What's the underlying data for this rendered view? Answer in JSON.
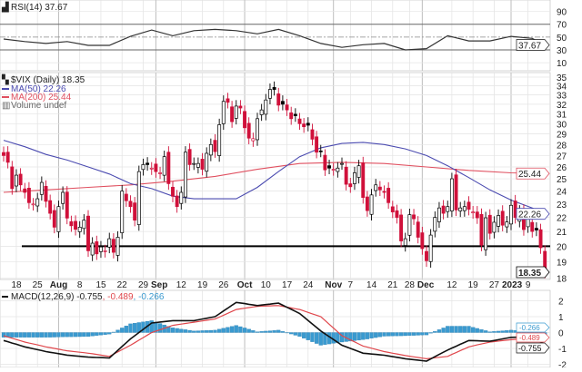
{
  "rsi": {
    "legend": "RSI(14) 37.67",
    "value_tag": "37.67",
    "axis_ticks": [
      90,
      70,
      50,
      30,
      10
    ],
    "points": [
      [
        "2022-07-13",
        47
      ],
      [
        "2022-07-20",
        43
      ],
      [
        "2022-07-27",
        40
      ],
      [
        "2022-08-03",
        43
      ],
      [
        "2022-08-10",
        37
      ],
      [
        "2022-08-17",
        37
      ],
      [
        "2022-08-24",
        51
      ],
      [
        "2022-08-31",
        61
      ],
      [
        "2022-09-08",
        52
      ],
      [
        "2022-09-15",
        60
      ],
      [
        "2022-09-22",
        62
      ],
      [
        "2022-09-29",
        60
      ],
      [
        "2022-10-06",
        55
      ],
      [
        "2022-10-13",
        62
      ],
      [
        "2022-10-20",
        52
      ],
      [
        "2022-10-27",
        40
      ],
      [
        "2022-11-03",
        34
      ],
      [
        "2022-11-10",
        38
      ],
      [
        "2022-11-17",
        40
      ],
      [
        "2022-11-25",
        30
      ],
      [
        "2022-12-02",
        32
      ],
      [
        "2022-12-09",
        52
      ],
      [
        "2022-12-16",
        44
      ],
      [
        "2022-12-23",
        44
      ],
      [
        "2023-01-03",
        51
      ],
      [
        "2023-01-10",
        48
      ],
      [
        "2023-01-13",
        37.67
      ]
    ]
  },
  "price": {
    "legend_title": "$VIX (Daily) 18.35",
    "ma50_label": "MA(50) 22.26",
    "ma200_label": "MA(200) 25.44",
    "volume_label": "Volume undef",
    "last_tag": "18.35",
    "ma50_tag": "22.26",
    "ma200_tag": "25.44",
    "scale": "log",
    "axis_ticks": [
      35,
      34,
      33,
      32,
      31,
      30,
      29,
      28,
      27,
      26,
      25,
      24,
      23,
      22,
      21,
      20,
      19,
      18
    ],
    "support_level": 20,
    "colors": {
      "up": "#000000",
      "down": "#d0103a",
      "ma50": "#4b4bb0",
      "ma200": "#e05060"
    },
    "dates": [
      "2022-07-13",
      "2022-07-14",
      "2022-07-15",
      "2022-07-18",
      "2022-07-19",
      "2022-07-20",
      "2022-07-21",
      "2022-07-22",
      "2022-07-25",
      "2022-07-26",
      "2022-07-27",
      "2022-07-28",
      "2022-07-29",
      "2022-08-01",
      "2022-08-02",
      "2022-08-03",
      "2022-08-04",
      "2022-08-05",
      "2022-08-08",
      "2022-08-09",
      "2022-08-10",
      "2022-08-11",
      "2022-08-12",
      "2022-08-15",
      "2022-08-16",
      "2022-08-17",
      "2022-08-18",
      "2022-08-19",
      "2022-08-22",
      "2022-08-23",
      "2022-08-24",
      "2022-08-25",
      "2022-08-26",
      "2022-08-29",
      "2022-08-30",
      "2022-08-31",
      "2022-09-01",
      "2022-09-02",
      "2022-09-06",
      "2022-09-07",
      "2022-09-08",
      "2022-09-09",
      "2022-09-12",
      "2022-09-13",
      "2022-09-14",
      "2022-09-15",
      "2022-09-16",
      "2022-09-19",
      "2022-09-20",
      "2022-09-21",
      "2022-09-22",
      "2022-09-23",
      "2022-09-26",
      "2022-09-27",
      "2022-09-28",
      "2022-09-29",
      "2022-09-30",
      "2022-10-03",
      "2022-10-04",
      "2022-10-05",
      "2022-10-06",
      "2022-10-07",
      "2022-10-10",
      "2022-10-11",
      "2022-10-12",
      "2022-10-13",
      "2022-10-14",
      "2022-10-17",
      "2022-10-18",
      "2022-10-19",
      "2022-10-20",
      "2022-10-21",
      "2022-10-24",
      "2022-10-25",
      "2022-10-26",
      "2022-10-27",
      "2022-10-28",
      "2022-10-31",
      "2022-11-01",
      "2022-11-02",
      "2022-11-03",
      "2022-11-04",
      "2022-11-07",
      "2022-11-08",
      "2022-11-09",
      "2022-11-10",
      "2022-11-11",
      "2022-11-14",
      "2022-11-15",
      "2022-11-16",
      "2022-11-17",
      "2022-11-18",
      "2022-11-21",
      "2022-11-22",
      "2022-11-23",
      "2022-11-25",
      "2022-11-28",
      "2022-11-29",
      "2022-11-30",
      "2022-12-01",
      "2022-12-02",
      "2022-12-05",
      "2022-12-06",
      "2022-12-07",
      "2022-12-08",
      "2022-12-09",
      "2022-12-12",
      "2022-12-13",
      "2022-12-14",
      "2022-12-15",
      "2022-12-16",
      "2022-12-19",
      "2022-12-20",
      "2022-12-21",
      "2022-12-22",
      "2022-12-23",
      "2022-12-27",
      "2022-12-28",
      "2022-12-29",
      "2022-12-30",
      "2023-01-03",
      "2023-01-04",
      "2023-01-05",
      "2023-01-06",
      "2023-01-09",
      "2023-01-10",
      "2023-01-11",
      "2023-01-12",
      "2023-01-13"
    ],
    "close": [
      27.0,
      26.4,
      24.2,
      25.3,
      24.5,
      23.9,
      23.1,
      23.0,
      23.4,
      24.7,
      23.2,
      22.3,
      21.3,
      22.8,
      23.9,
      21.95,
      21.4,
      21.15,
      21.3,
      21.8,
      19.7,
      20.2,
      19.5,
      19.95,
      19.7,
      20.5,
      19.6,
      20.6,
      24.0,
      23.25,
      22.8,
      21.8,
      25.6,
      26.2,
      26.2,
      25.9,
      25.6,
      25.5,
      26.9,
      24.6,
      23.6,
      22.8,
      23.9,
      27.3,
      26.2,
      26.3,
      26.3,
      25.8,
      27.2,
      28.0,
      27.35,
      29.9,
      32.3,
      32.2,
      30.2,
      31.8,
      31.6,
      29.6,
      28.6,
      28.55,
      30.5,
      31.4,
      32.45,
      33.6,
      33.6,
      31.9,
      32.0,
      31.4,
      30.5,
      30.8,
      30.0,
      29.7,
      29.85,
      28.5,
      27.3,
      27.4,
      25.75,
      25.9,
      25.8,
      25.9,
      26.3,
      24.55,
      24.35,
      25.5,
      26.1,
      23.5,
      22.5,
      23.7,
      24.5,
      24.1,
      23.9,
      23.1,
      22.4,
      22.0,
      20.35,
      20.5,
      22.2,
      21.9,
      20.6,
      19.84,
      19.06,
      20.75,
      22.0,
      22.7,
      22.3,
      22.8,
      25.0,
      22.55,
      22.7,
      22.8,
      22.6,
      22.4,
      21.97,
      20.07,
      21.97,
      20.87,
      21.65,
      22.14,
      21.44,
      21.67,
      22.9,
      22.0,
      22.46,
      21.13,
      21.97,
      21.0,
      21.1,
      19.9,
      18.35
    ],
    "ma50": [
      [
        "2022-07-13",
        28.4
      ],
      [
        "2022-07-20",
        27.8
      ],
      [
        "2022-07-27",
        27.1
      ],
      [
        "2022-08-03",
        26.6
      ],
      [
        "2022-08-10",
        26.0
      ],
      [
        "2022-08-17",
        25.4
      ],
      [
        "2022-08-24",
        24.6
      ],
      [
        "2022-08-31",
        24.2
      ],
      [
        "2022-09-08",
        23.6
      ],
      [
        "2022-09-15",
        23.4
      ],
      [
        "2022-09-22",
        23.4
      ],
      [
        "2022-09-29",
        23.4
      ],
      [
        "2022-10-06",
        24.3
      ],
      [
        "2022-10-13",
        25.6
      ],
      [
        "2022-10-20",
        26.9
      ],
      [
        "2022-10-27",
        27.7
      ],
      [
        "2022-11-03",
        28.1
      ],
      [
        "2022-11-10",
        28.2
      ],
      [
        "2022-11-17",
        28.0
      ],
      [
        "2022-11-25",
        27.6
      ],
      [
        "2022-12-02",
        27.0
      ],
      [
        "2022-12-09",
        26.1
      ],
      [
        "2022-12-16",
        25.1
      ],
      [
        "2022-12-23",
        24.1
      ],
      [
        "2023-01-03",
        23.3
      ],
      [
        "2023-01-10",
        22.7
      ],
      [
        "2023-01-13",
        22.26
      ]
    ],
    "ma200": [
      [
        "2022-07-13",
        23.9
      ],
      [
        "2022-07-27",
        24.1
      ],
      [
        "2022-08-10",
        24.3
      ],
      [
        "2022-08-24",
        24.5
      ],
      [
        "2022-09-08",
        24.8
      ],
      [
        "2022-09-22",
        25.2
      ],
      [
        "2022-10-06",
        25.8
      ],
      [
        "2022-10-20",
        26.3
      ],
      [
        "2022-11-03",
        26.4
      ],
      [
        "2022-11-17",
        26.3
      ],
      [
        "2022-12-02",
        26.0
      ],
      [
        "2022-12-16",
        25.7
      ],
      [
        "2023-01-03",
        25.5
      ],
      [
        "2023-01-13",
        25.44
      ]
    ]
  },
  "date_axis": [
    {
      "date": "2022-07-18",
      "label": "18"
    },
    {
      "date": "2022-07-25",
      "label": "25"
    },
    {
      "date": "2022-08-01",
      "label": "Aug",
      "month": true
    },
    {
      "date": "2022-08-08",
      "label": "8"
    },
    {
      "date": "2022-08-15",
      "label": "15"
    },
    {
      "date": "2022-08-22",
      "label": "22"
    },
    {
      "date": "2022-08-29",
      "label": "29"
    },
    {
      "date": "2022-09-01",
      "label": "Sep",
      "month": true
    },
    {
      "date": "2022-09-12",
      "label": "12"
    },
    {
      "date": "2022-09-19",
      "label": "19"
    },
    {
      "date": "2022-09-26",
      "label": "26"
    },
    {
      "date": "2022-10-03",
      "label": "Oct",
      "month": true
    },
    {
      "date": "2022-10-10",
      "label": "10"
    },
    {
      "date": "2022-10-17",
      "label": "17"
    },
    {
      "date": "2022-10-24",
      "label": "24"
    },
    {
      "date": "2022-11-01",
      "label": "Nov",
      "month": true
    },
    {
      "date": "2022-11-07",
      "label": "7"
    },
    {
      "date": "2022-11-14",
      "label": "14"
    },
    {
      "date": "2022-11-21",
      "label": "21"
    },
    {
      "date": "2022-11-28",
      "label": "28"
    },
    {
      "date": "2022-12-01",
      "label": "Dec",
      "month": true
    },
    {
      "date": "2022-12-12",
      "label": "12"
    },
    {
      "date": "2022-12-19",
      "label": "19"
    },
    {
      "date": "2022-12-27",
      "label": "27"
    },
    {
      "date": "2023-01-03",
      "label": "2023",
      "month": true
    },
    {
      "date": "2023-01-09",
      "label": "9"
    }
  ],
  "macd": {
    "legend_main": "MACD(12,26,9) -0.755",
    "legend_signal": ", -0.489",
    "legend_hist": ", -0.266",
    "tags": [
      "-0.266",
      "-0.489",
      "-0.755"
    ],
    "axis_ticks": [
      2,
      1,
      0,
      -1,
      -2
    ],
    "colors": {
      "macd": "#111111",
      "signal": "#e0474c",
      "histogram": "#3a9ad0"
    },
    "points": [
      [
        "2022-07-13",
        -0.5,
        -0.2,
        -0.3
      ],
      [
        "2022-07-20",
        -0.9,
        -0.6,
        -0.3
      ],
      [
        "2022-07-27",
        -1.2,
        -0.9,
        -0.3
      ],
      [
        "2022-08-03",
        -1.42,
        -1.15,
        -0.27
      ],
      [
        "2022-08-10",
        -1.55,
        -1.3,
        -0.25
      ],
      [
        "2022-08-17",
        -1.6,
        -1.5,
        -0.1
      ],
      [
        "2022-08-24",
        -0.4,
        -0.8,
        0.55
      ],
      [
        "2022-08-31",
        0.6,
        0.0,
        0.75
      ],
      [
        "2022-09-08",
        0.75,
        0.45,
        0.3
      ],
      [
        "2022-09-15",
        0.75,
        0.65,
        0.1
      ],
      [
        "2022-09-22",
        1.0,
        0.85,
        0.15
      ],
      [
        "2022-09-29",
        1.9,
        1.45,
        0.45
      ],
      [
        "2022-10-06",
        1.7,
        1.65,
        0.05
      ],
      [
        "2022-10-13",
        1.85,
        1.7,
        0.15
      ],
      [
        "2022-10-20",
        1.2,
        1.45,
        -0.25
      ],
      [
        "2022-10-27",
        0.1,
        1.0,
        -0.8
      ],
      [
        "2022-11-03",
        -0.8,
        -0.2,
        -0.6
      ],
      [
        "2022-11-10",
        -1.3,
        -0.85,
        -0.45
      ],
      [
        "2022-11-17",
        -1.43,
        -1.2,
        -0.23
      ],
      [
        "2022-11-25",
        -1.65,
        -1.45,
        -0.2
      ],
      [
        "2022-12-02",
        -1.8,
        -1.65,
        -0.15
      ],
      [
        "2022-12-09",
        -1.1,
        -1.5,
        0.4
      ],
      [
        "2022-12-16",
        -0.5,
        -0.9,
        0.4
      ],
      [
        "2022-12-23",
        -0.55,
        -0.6,
        0.05
      ],
      [
        "2023-01-03",
        -0.3,
        -0.45,
        0.15
      ],
      [
        "2023-01-10",
        -0.28,
        -0.35,
        0.07
      ],
      [
        "2023-01-13",
        -0.755,
        -0.489,
        -0.266
      ]
    ]
  }
}
